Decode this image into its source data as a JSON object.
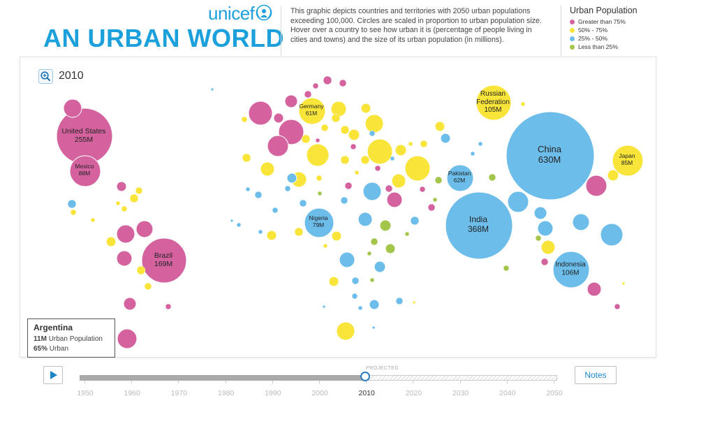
{
  "header": {
    "logo": "unicef",
    "title": "AN URBAN WORLD",
    "description": "This graphic depicts countries and territories with 2050 urban populations exceeding 100,000. Circles are scaled in proportion to urban population size. Hover over a country to see how urban it is (percentage of people living in cities and towns) and the size of its urban population (in millions)."
  },
  "legend": {
    "title": "Urban Population",
    "items": [
      {
        "label": "Greater than 75%",
        "color": "#d4629f"
      },
      {
        "label": "50% - 75%",
        "color": "#f9e53a"
      },
      {
        "label": "25% - 50%",
        "color": "#6cbdea"
      },
      {
        "label": "Less than 25%",
        "color": "#a3c54a"
      }
    ]
  },
  "chart": {
    "year": "2010",
    "labels": [
      {
        "id": "usa",
        "name": "United States",
        "value": "255M"
      },
      {
        "id": "mexico",
        "name": "Mexico",
        "value": "88M"
      },
      {
        "id": "brazil",
        "name": "Brazil",
        "value": "169M"
      },
      {
        "id": "germany",
        "name": "Germany",
        "value": "61M"
      },
      {
        "id": "russia",
        "name": "Russian Federation",
        "value": "105M"
      },
      {
        "id": "china",
        "name": "China",
        "value": "630M"
      },
      {
        "id": "japan",
        "name": "Japan",
        "value": "85M"
      },
      {
        "id": "pakistan",
        "name": "Pakistan",
        "value": "62M"
      },
      {
        "id": "india",
        "name": "India",
        "value": "368M"
      },
      {
        "id": "nigeria",
        "name": "Nigeria",
        "value": "79M"
      },
      {
        "id": "indonesia",
        "name": "Indonesia",
        "value": "106M"
      }
    ]
  },
  "tooltip": {
    "country": "Argentina",
    "population_value": "11M",
    "population_label": "Urban Population",
    "urban_value": "65%",
    "urban_label": "Urban"
  },
  "timeline": {
    "projected_label": "PROJECTED",
    "years": [
      "1950",
      "1960",
      "1970",
      "1980",
      "1990",
      "2000",
      "2010",
      "2020",
      "2030",
      "2040",
      "2050"
    ],
    "current_year": "2010",
    "progress_fraction": 0.6
  },
  "controls": {
    "play_icon": "play-icon",
    "zoom_icon": "zoom-in-icon",
    "notes_label": "Notes"
  }
}
